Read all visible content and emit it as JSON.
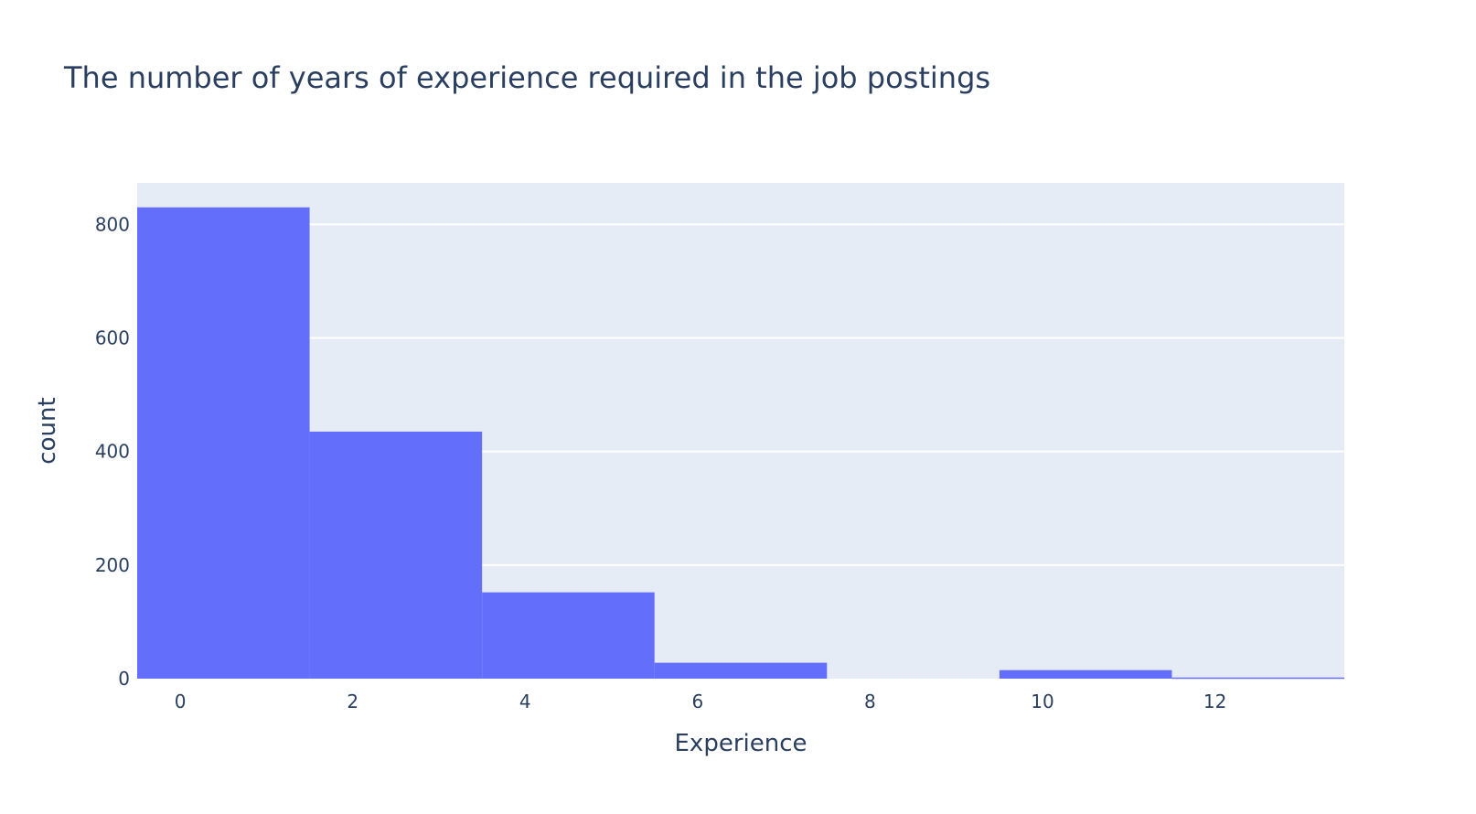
{
  "chart_data": {
    "type": "bar",
    "title": "The number of years of experience required in the job postings",
    "xlabel": "Experience",
    "ylabel": "count",
    "bins": [
      {
        "x0": -0.5,
        "x1": 1.5,
        "count": 830
      },
      {
        "x0": 1.5,
        "x1": 3.5,
        "count": 435
      },
      {
        "x0": 3.5,
        "x1": 5.5,
        "count": 152
      },
      {
        "x0": 5.5,
        "x1": 7.5,
        "count": 28
      },
      {
        "x0": 7.5,
        "x1": 9.5,
        "count": 0
      },
      {
        "x0": 9.5,
        "x1": 11.5,
        "count": 15
      },
      {
        "x0": 11.5,
        "x1": 13.5,
        "count": 2
      }
    ],
    "xlim": [
      -0.5,
      13.5
    ],
    "ylim": [
      0,
      873
    ],
    "x_ticks": [
      0,
      2,
      4,
      6,
      8,
      10,
      12
    ],
    "y_ticks": [
      0,
      200,
      400,
      600,
      800
    ],
    "grid": true,
    "colors": {
      "bar": "#636efa",
      "plot_background": "#e5ecf6",
      "grid": "#ffffff",
      "text": "#2a3f5f"
    }
  }
}
